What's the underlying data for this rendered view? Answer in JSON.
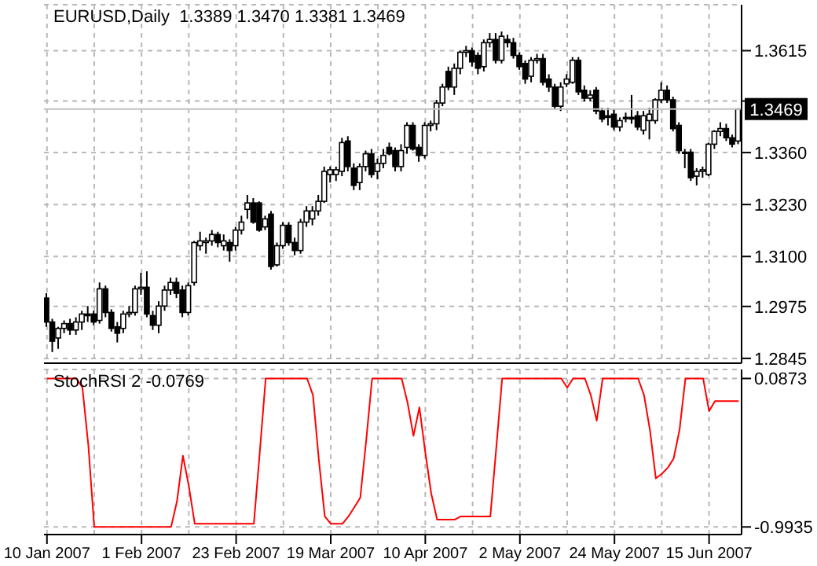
{
  "chart_data": [
    {
      "type": "candlestick",
      "title": "EURUSD,Daily  1.3389 1.3470 1.3381 1.3469",
      "color": "#000000",
      "categories": [
        null,
        null,
        null,
        null,
        null,
        null,
        null,
        null,
        null,
        null,
        null,
        null,
        null,
        null,
        null,
        null,
        null,
        null,
        null,
        null,
        null,
        null,
        null,
        null,
        null,
        null,
        null,
        null,
        null,
        null,
        null,
        null,
        null,
        null,
        null,
        null,
        null,
        null,
        null,
        null,
        null,
        null,
        null,
        null,
        null,
        null,
        null,
        null,
        null,
        null,
        null,
        null,
        null,
        null,
        null,
        null,
        null,
        null,
        null,
        null,
        null,
        null,
        null,
        null,
        null,
        null,
        null,
        null,
        null,
        null,
        null,
        null,
        null,
        null,
        null,
        null,
        null,
        null,
        null,
        null,
        null,
        null,
        null,
        null,
        null,
        null,
        null,
        null,
        null,
        null,
        null,
        null,
        null,
        null,
        null,
        null,
        null,
        null,
        null,
        null,
        null,
        null,
        null,
        null,
        null,
        null,
        null,
        null,
        null,
        null,
        null,
        null,
        null,
        null,
        null,
        null,
        null,
        null
      ],
      "ohlc": [
        [
          1.2996,
          1.3008,
          1.2924,
          1.2936
        ],
        [
          1.2936,
          1.2944,
          1.2861,
          1.2888
        ],
        [
          1.2896,
          1.2924,
          1.2869,
          1.292
        ],
        [
          1.292,
          1.294,
          1.2908,
          1.2932
        ],
        [
          1.2932,
          1.2944,
          1.2904,
          1.2916
        ],
        [
          1.2916,
          1.2948,
          1.2904,
          1.2936
        ],
        [
          1.2936,
          1.2964,
          1.2916,
          1.2956
        ],
        [
          1.2956,
          1.2976,
          1.2936,
          1.2952
        ],
        [
          1.2956,
          1.2964,
          1.2928,
          1.2936
        ],
        [
          1.294,
          1.3035,
          1.2932,
          1.3019
        ],
        [
          1.3019,
          1.3027,
          1.2948,
          1.296
        ],
        [
          1.296,
          1.2968,
          1.2912,
          1.292
        ],
        [
          1.2924,
          1.2936,
          1.2885,
          1.2908
        ],
        [
          1.292,
          1.2964,
          1.2908,
          1.2956
        ],
        [
          1.2956,
          1.2976,
          1.2948,
          1.296
        ],
        [
          1.296,
          1.3027,
          1.2952,
          1.3019
        ],
        [
          1.3019,
          1.3059,
          1.3004,
          1.3023
        ],
        [
          1.3023,
          1.3063,
          1.2948,
          1.2956
        ],
        [
          1.2952,
          1.2964,
          1.2916,
          1.2928
        ],
        [
          1.2928,
          1.2988,
          1.2908,
          1.2976
        ],
        [
          1.2976,
          1.3027,
          1.2964,
          1.3016
        ],
        [
          1.3016,
          1.3047,
          1.3004,
          1.3035
        ],
        [
          1.3035,
          1.3047,
          1.2996,
          1.3008
        ],
        [
          1.3016,
          1.3027,
          1.2948,
          1.296
        ],
        [
          1.296,
          1.3035,
          1.2952,
          1.3027
        ],
        [
          1.3035,
          1.3139,
          1.3027,
          1.3135
        ],
        [
          1.3127,
          1.3162,
          1.3115,
          1.3139
        ],
        [
          1.3135,
          1.3147,
          1.3107,
          1.3139
        ],
        [
          1.3139,
          1.3166,
          1.3127,
          1.3155
        ],
        [
          1.3155,
          1.3162,
          1.3123,
          1.3135
        ],
        [
          1.3127,
          1.3155,
          1.3115,
          1.3139
        ],
        [
          1.3135,
          1.3143,
          1.3087,
          1.3115
        ],
        [
          1.3127,
          1.3174,
          1.3115,
          1.3166
        ],
        [
          1.3166,
          1.3202,
          1.3155,
          1.3186
        ],
        [
          1.3218,
          1.3254,
          1.3194,
          1.3234
        ],
        [
          1.3234,
          1.3246,
          1.3182,
          1.3186
        ],
        [
          1.3234,
          1.3238,
          1.3162,
          1.3166
        ],
        [
          1.3174,
          1.3202,
          1.3166,
          1.3194
        ],
        [
          1.3206,
          1.3214,
          1.3067,
          1.3075
        ],
        [
          1.3079,
          1.3135,
          1.3075,
          1.3127
        ],
        [
          1.3127,
          1.3186,
          1.3119,
          1.3178
        ],
        [
          1.3178,
          1.3186,
          1.3127,
          1.3135
        ],
        [
          1.3135,
          1.3147,
          1.3103,
          1.3115
        ],
        [
          1.3115,
          1.3194,
          1.3107,
          1.3186
        ],
        [
          1.3186,
          1.3226,
          1.3174,
          1.3214
        ],
        [
          1.3194,
          1.3226,
          1.3178,
          1.3214
        ],
        [
          1.3214,
          1.3254,
          1.3202,
          1.3238
        ],
        [
          1.3238,
          1.3325,
          1.3234,
          1.3313
        ],
        [
          1.3305,
          1.3325,
          1.3285,
          1.3317
        ],
        [
          1.3305,
          1.3325,
          1.3289,
          1.3317
        ],
        [
          1.3313,
          1.3397,
          1.3301,
          1.3385
        ],
        [
          1.3389,
          1.3401,
          1.3313,
          1.3325
        ],
        [
          1.3321,
          1.3333,
          1.3266,
          1.3278
        ],
        [
          1.3285,
          1.3333,
          1.3266,
          1.3325
        ],
        [
          1.3325,
          1.3365,
          1.3313,
          1.3357
        ],
        [
          1.3357,
          1.3369,
          1.3297,
          1.3305
        ],
        [
          1.3313,
          1.3345,
          1.3293,
          1.3333
        ],
        [
          1.3333,
          1.3369,
          1.3321,
          1.3353
        ],
        [
          1.3373,
          1.3385,
          1.3353,
          1.3357
        ],
        [
          1.3365,
          1.3373,
          1.3313,
          1.3325
        ],
        [
          1.3325,
          1.3381,
          1.3313,
          1.3365
        ],
        [
          1.3373,
          1.3436,
          1.3357,
          1.3428
        ],
        [
          1.3428,
          1.3436,
          1.3365,
          1.3369
        ],
        [
          1.3373,
          1.3381,
          1.3337,
          1.3353
        ],
        [
          1.3353,
          1.3436,
          1.3345,
          1.3428
        ],
        [
          1.3428,
          1.344,
          1.3413,
          1.3432
        ],
        [
          1.3432,
          1.3492,
          1.3416,
          1.3484
        ],
        [
          1.3484,
          1.3532,
          1.3476,
          1.3524
        ],
        [
          1.3563,
          1.3575,
          1.3516,
          1.3524
        ],
        [
          1.3524,
          1.3583,
          1.3504,
          1.3571
        ],
        [
          1.3571,
          1.3615,
          1.3556,
          1.3611
        ],
        [
          1.3611,
          1.3627,
          1.3599,
          1.3615
        ],
        [
          1.3615,
          1.3623,
          1.3575,
          1.3587
        ],
        [
          1.3603,
          1.3611,
          1.3556,
          1.3571
        ],
        [
          1.3575,
          1.3643,
          1.3563,
          1.3635
        ],
        [
          1.3635,
          1.3659,
          1.3623,
          1.3643
        ],
        [
          1.3643,
          1.3659,
          1.3583,
          1.3591
        ],
        [
          1.3591,
          1.3663,
          1.3583,
          1.3651
        ],
        [
          1.3643,
          1.3655,
          1.3623,
          1.3635
        ],
        [
          1.3635,
          1.3647,
          1.3595,
          1.3603
        ],
        [
          1.3603,
          1.3611,
          1.3567,
          1.3575
        ],
        [
          1.3583,
          1.3591,
          1.3532,
          1.3544
        ],
        [
          1.3551,
          1.3599,
          1.3536,
          1.3591
        ],
        [
          1.3591,
          1.3607,
          1.3583,
          1.3595
        ],
        [
          1.3595,
          1.3607,
          1.3528,
          1.3536
        ],
        [
          1.3544,
          1.3556,
          1.3512,
          1.3524
        ],
        [
          1.3524,
          1.3532,
          1.3468,
          1.3476
        ],
        [
          1.3476,
          1.3536,
          1.3464,
          1.3524
        ],
        [
          1.3532,
          1.3556,
          1.3524,
          1.3544
        ],
        [
          1.3536,
          1.3599,
          1.3532,
          1.3591
        ],
        [
          1.3591,
          1.3599,
          1.3504,
          1.3512
        ],
        [
          1.3516,
          1.3528,
          1.3488,
          1.3496
        ],
        [
          1.3496,
          1.3516,
          1.3488,
          1.3504
        ],
        [
          1.3516,
          1.3524,
          1.3456,
          1.3464
        ],
        [
          1.3464,
          1.3472,
          1.3436,
          1.3444
        ],
        [
          1.3452,
          1.3472,
          1.3428,
          1.3448
        ],
        [
          1.3456,
          1.3468,
          1.3416,
          1.3424
        ],
        [
          1.3424,
          1.3448,
          1.3413,
          1.344
        ],
        [
          1.3448,
          1.346,
          1.3436,
          1.3448
        ],
        [
          1.3448,
          1.3504,
          1.3432,
          1.3444
        ],
        [
          1.3452,
          1.3464,
          1.3416,
          1.3424
        ],
        [
          1.3416,
          1.3464,
          1.3405,
          1.3452
        ],
        [
          1.344,
          1.3472,
          1.3393,
          1.3456
        ],
        [
          1.344,
          1.3496,
          1.3432,
          1.3492
        ],
        [
          1.3492,
          1.3536,
          1.3484,
          1.3516
        ],
        [
          1.3516,
          1.3528,
          1.3484,
          1.3492
        ],
        [
          1.3492,
          1.35,
          1.3413,
          1.342
        ],
        [
          1.3428,
          1.3436,
          1.3357,
          1.3365
        ],
        [
          1.3361,
          1.3369,
          1.3321,
          1.3361
        ],
        [
          1.3361,
          1.3369,
          1.3289,
          1.3297
        ],
        [
          1.3301,
          1.3321,
          1.3278,
          1.3313
        ],
        [
          1.3313,
          1.3325,
          1.3297,
          1.3317
        ],
        [
          1.3305,
          1.3385,
          1.3301,
          1.3381
        ],
        [
          1.3381,
          1.3416,
          1.3369,
          1.3413
        ],
        [
          1.3413,
          1.3436,
          1.3401,
          1.342
        ],
        [
          1.342,
          1.3432,
          1.3389,
          1.3397
        ],
        [
          1.3397,
          1.3405,
          1.3373,
          1.3381
        ],
        [
          1.3389,
          1.347,
          1.3381,
          1.3469
        ]
      ],
      "ylim": [
        1.2833,
        1.373
      ],
      "yticks": [
        1.2845,
        1.2975,
        {
          "value": 1.31,
          "label": "1.3100"
        },
        {
          "value": 1.323,
          "label": "1.3230"
        },
        {
          "value": 1.336,
          "label": "1.3360"
        },
        {
          "value": 1.3489,
          "label": null
        },
        1.3615
      ],
      "ref_lines": [
        {
          "axis": "y",
          "value": 1.3469,
          "label": "1.3469",
          "color": "#c0c0c0"
        }
      ],
      "grid": true,
      "tick_labels": "y"
    },
    {
      "type": "line",
      "title": "StochRSI 2 -0.0769",
      "categories": [
        "10 Jan 2007",
        null,
        null,
        null,
        null,
        null,
        null,
        null,
        null,
        null,
        null,
        null,
        null,
        null,
        null,
        null,
        "1 Feb 2007",
        null,
        null,
        null,
        null,
        null,
        null,
        null,
        null,
        null,
        null,
        null,
        null,
        null,
        null,
        null,
        "23 Feb 2007",
        null,
        null,
        null,
        null,
        null,
        null,
        null,
        null,
        null,
        null,
        null,
        null,
        null,
        null,
        null,
        "19 Mar 2007",
        null,
        null,
        null,
        null,
        null,
        null,
        null,
        null,
        null,
        null,
        null,
        null,
        null,
        null,
        null,
        "10 Apr 2007",
        null,
        null,
        null,
        null,
        null,
        null,
        null,
        null,
        null,
        null,
        null,
        null,
        null,
        null,
        null,
        "2 May 2007",
        null,
        null,
        null,
        null,
        null,
        null,
        null,
        null,
        null,
        null,
        null,
        null,
        null,
        null,
        null,
        "24 May 2007",
        null,
        null,
        null,
        null,
        null,
        null,
        null,
        null,
        null,
        null,
        null,
        null,
        null,
        null,
        null,
        "15 Jun 2007",
        null,
        null,
        null,
        null,
        null
      ],
      "series": [
        {
          "color": "#ff0000",
          "values": [
            0.0873,
            0.0873,
            0.0873,
            0.0873,
            0.0873,
            0.0873,
            0.021,
            -0.398,
            -0.9935,
            -0.9935,
            -0.9935,
            -0.9935,
            -0.9935,
            -0.9935,
            -0.9935,
            -0.9935,
            -0.9935,
            -0.9935,
            -0.9935,
            -0.9935,
            -0.9935,
            -0.9935,
            -0.806,
            -0.475,
            -0.696,
            -0.97,
            -0.97,
            -0.97,
            -0.97,
            -0.97,
            -0.97,
            -0.97,
            -0.97,
            -0.97,
            -0.97,
            -0.97,
            -0.45,
            0.0873,
            0.0873,
            0.0873,
            0.0873,
            0.0873,
            0.0873,
            0.0873,
            0.0873,
            -0.034,
            -0.508,
            -0.917,
            -0.97,
            -0.97,
            -0.97,
            -0.917,
            -0.85,
            -0.78,
            -0.365,
            0.0873,
            0.0873,
            0.0873,
            0.0873,
            0.0873,
            0.0873,
            -0.089,
            -0.33,
            -0.123,
            -0.45,
            -0.75,
            -0.94,
            -0.94,
            -0.94,
            -0.94,
            -0.917,
            -0.917,
            -0.917,
            -0.917,
            -0.917,
            -0.917,
            -0.42,
            0.0873,
            0.0873,
            0.0873,
            0.0873,
            0.0873,
            0.0873,
            0.0873,
            0.0873,
            0.0873,
            0.0873,
            0.0873,
            0.021,
            0.0873,
            0.0873,
            0.0873,
            -0.034,
            -0.22,
            0.0873,
            0.0873,
            0.0873,
            0.0873,
            0.0873,
            0.0873,
            0.0873,
            -0.034,
            -0.288,
            -0.64,
            -0.607,
            -0.563,
            -0.497,
            -0.288,
            0.0873,
            0.0873,
            0.0873,
            0.0873,
            -0.15,
            -0.0769,
            -0.0769,
            -0.0769,
            -0.0769,
            -0.0769
          ]
        }
      ],
      "ylim": [
        -1.049,
        0.153
      ],
      "yticks": [
        -0.9935,
        0.0873
      ],
      "grid": true
    }
  ]
}
